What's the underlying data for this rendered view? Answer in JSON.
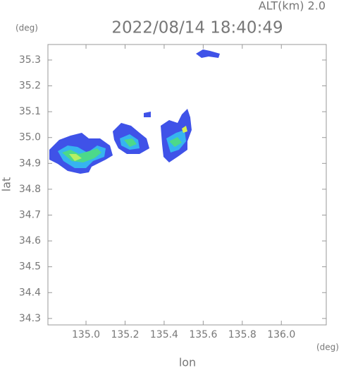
{
  "header": {
    "altitude": "ALT(km) 2.0",
    "title": "2022/08/14 18:40:49",
    "y_unit": "(deg)"
  },
  "map": {
    "xlim": [
      134.805,
      136.23
    ],
    "ylim": [
      34.275,
      35.36
    ],
    "xticks": [
      {
        "value": 135,
        "label": "135.0"
      },
      135.2,
      135.4,
      135.6,
      135.8,
      {
        "value": 136,
        "label": "136.0"
      }
    ],
    "yticks": [
      34.3,
      34.4,
      34.5,
      34.6,
      34.7,
      34.8,
      34.9,
      {
        "value": 35,
        "label": "35.0"
      },
      35.1,
      35.2,
      35.3
    ],
    "x_label": "lon",
    "x_unit": "(deg)",
    "y_label": "lat"
  }
}
